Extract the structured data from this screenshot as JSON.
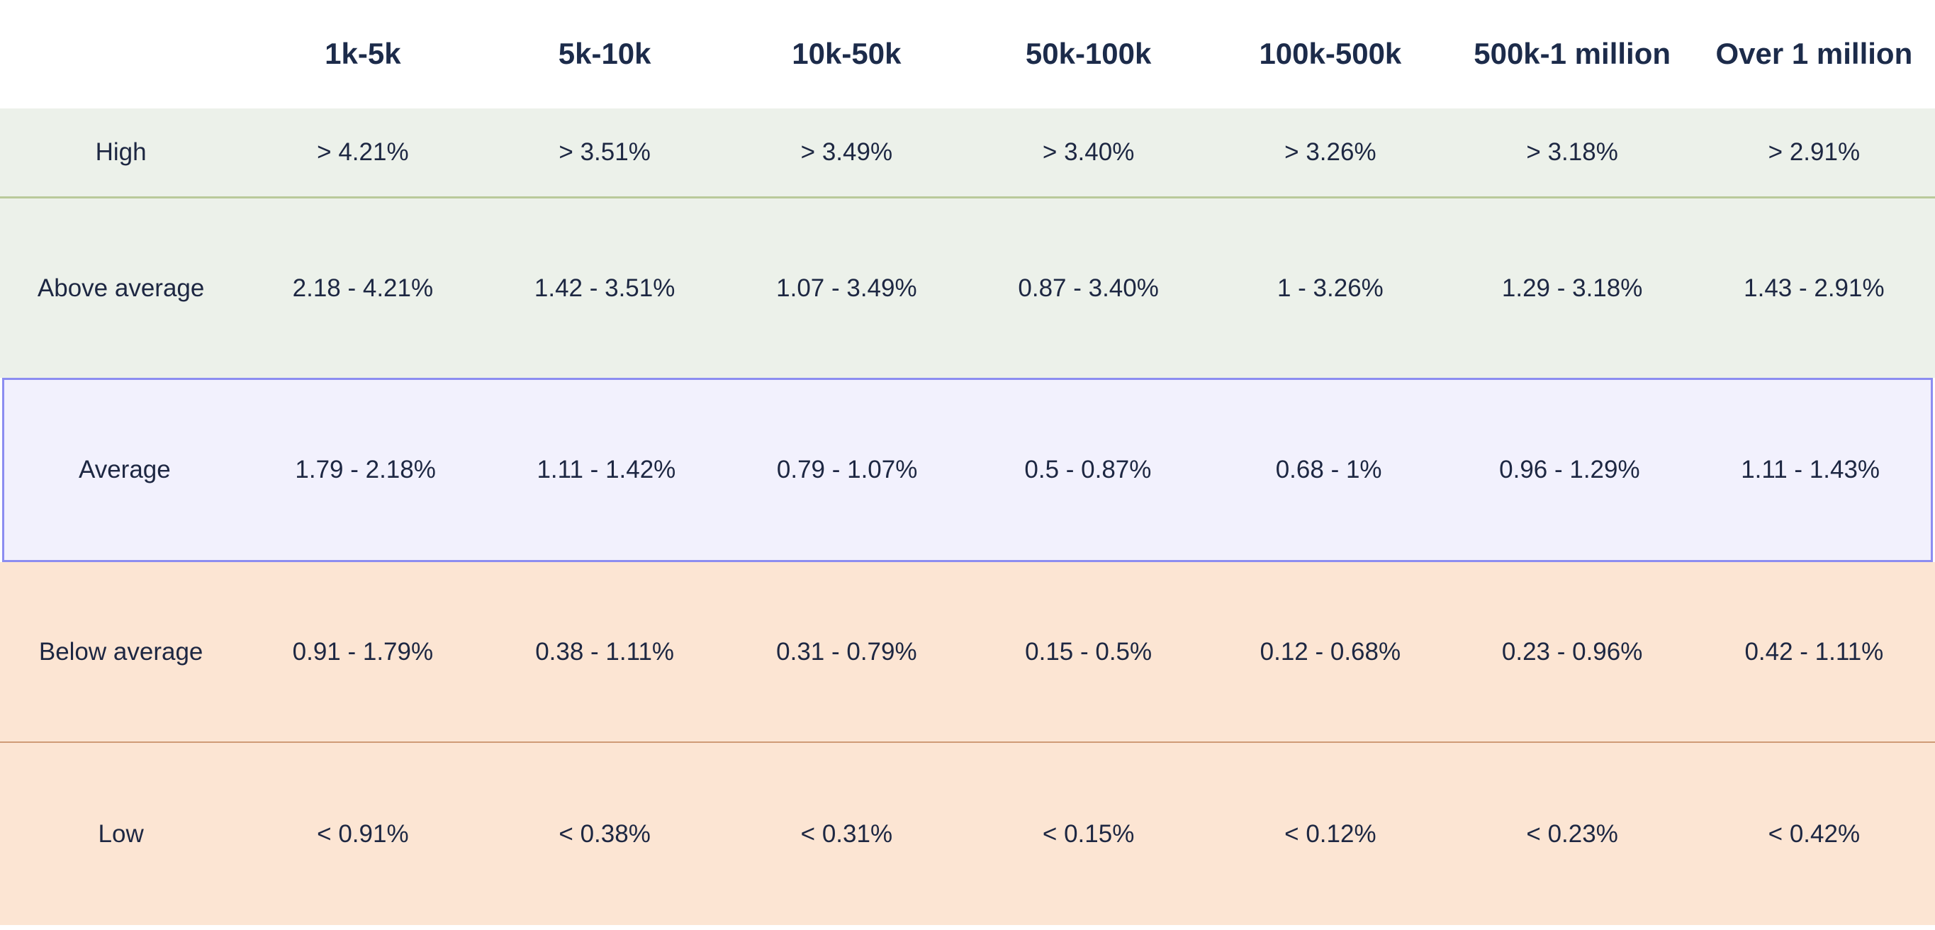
{
  "chart_data": {
    "type": "table",
    "column_headers": [
      "1k-5k",
      "5k-10k",
      "10k-50k",
      "50k-100k",
      "100k-500k",
      "500k-1 million",
      "Over 1 million"
    ],
    "row_headers": [
      "High",
      "Above average",
      "Average",
      "Below average",
      "Low"
    ],
    "rows": [
      [
        "> 4.21%",
        "> 3.51%",
        "> 3.49%",
        "> 3.40%",
        "> 3.26%",
        "> 3.18%",
        "> 2.91%"
      ],
      [
        "2.18 - 4.21%",
        "1.42 - 3.51%",
        "1.07 - 3.49%",
        "0.87 - 3.40%",
        "1 - 3.26%",
        "1.29 - 3.18%",
        "1.43 - 2.91%"
      ],
      [
        "1.79 - 2.18%",
        "1.11 - 1.42%",
        "0.79 - 1.07%",
        "0.5 - 0.87%",
        "0.68 - 1%",
        "0.96 - 1.29%",
        "1.11 - 1.43%"
      ],
      [
        "0.91 - 1.79%",
        "0.38 - 1.11%",
        "0.31 - 0.79%",
        "0.15 - 0.5%",
        "0.12 - 0.68%",
        "0.23 - 0.96%",
        "0.42 - 1.11%"
      ],
      [
        "< 0.91%",
        "< 0.38%",
        "< 0.31%",
        "< 0.15%",
        "< 0.12%",
        "< 0.23%",
        "< 0.42%"
      ]
    ],
    "row_band_tones": [
      "green",
      "green",
      "lavender",
      "peach",
      "peach"
    ],
    "highlighted_row": "Average",
    "grid": "off",
    "legend": "none"
  },
  "colors": {
    "green_band": "#ecf1ea",
    "green_divider": "#b9ca9b",
    "lavender_band": "#f2f1fd",
    "highlight_border": "#8c8df1",
    "peach_band": "#fce5d3",
    "peach_divider": "#cf9b76",
    "text_navy": "#1d2742",
    "header_navy": "#1c2b4a",
    "page_background": "#ffffff"
  }
}
